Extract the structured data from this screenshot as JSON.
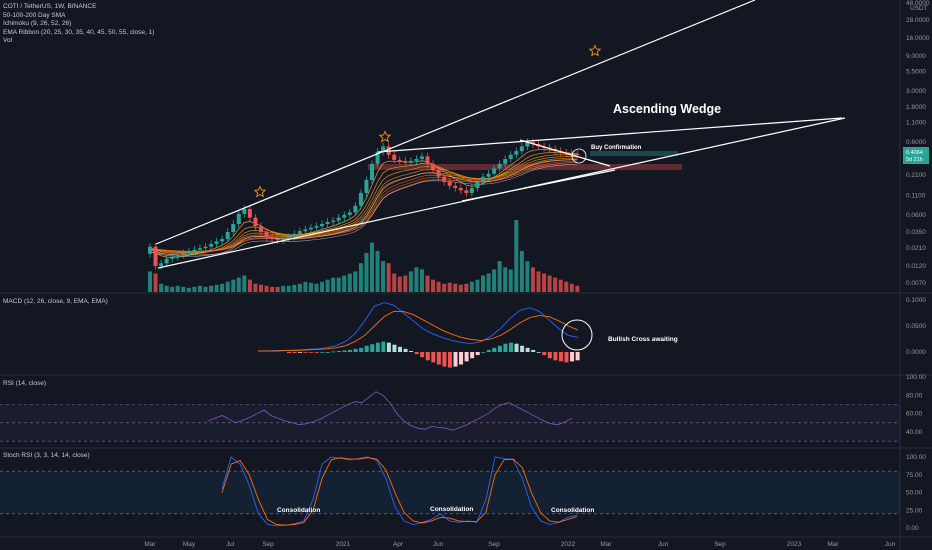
{
  "legend": {
    "symbol": "COTI / TetherUS, 1W, BINANCE",
    "indicators": [
      "50-100-200 Day SMA",
      "Ichimoku (9, 26, 52, 26)",
      "EMA Ribbon (20, 25, 30, 35, 40, 45, 50, 55, close, 1)",
      "Vol"
    ]
  },
  "panes": {
    "macd_label": "MACD (12, 26, close, 9, EMA, EMA)",
    "rsi_label": "RSI (14, close)",
    "stoch_label": "Stoch RSI (3, 3, 14, 14, close)"
  },
  "colors": {
    "background": "#131722",
    "bull": "#26a69a",
    "bear": "#ef5350",
    "macd_line": "#2962ff",
    "signal_line": "#ff6d00",
    "rsi_line": "#7e57c2",
    "trendline": "#ffffff",
    "star": "#ff9800"
  },
  "annotations": {
    "title": "Ascending Wedge",
    "buy": "Buy Confirmation",
    "macd_note": "Bullish Cross awaiting",
    "consolidation": [
      "Consolidation",
      "Consolidation",
      "Consolidation"
    ]
  },
  "price_badge": {
    "price": "0.4064",
    "countdown": "5d 21h"
  },
  "chart_data": [
    {
      "type": "candlestick",
      "pane": "price",
      "scale": "log",
      "currency": "USDT",
      "y_ticks": [
        "0.0070",
        "0.0120",
        "0.0210",
        "0.0350",
        "0.0600",
        "0.1100",
        "0.2100",
        "0.3600",
        "0.6000",
        "1.1000",
        "1.8000",
        "3.0000",
        "5.5000",
        "9.0000",
        "16.0000",
        "28.0000",
        "48.0000"
      ],
      "x_ticks": [
        "Mar",
        "May",
        "Jul",
        "Sep",
        "2021",
        "Apr",
        "Jun",
        "Sep",
        "2022",
        "Mar",
        "Jun",
        "Sep",
        "2023",
        "Mar",
        "Jun"
      ],
      "closes": [
        0.022,
        0.012,
        0.013,
        0.015,
        0.016,
        0.017,
        0.018,
        0.019,
        0.02,
        0.021,
        0.022,
        0.024,
        0.026,
        0.028,
        0.035,
        0.045,
        0.062,
        0.072,
        0.055,
        0.042,
        0.035,
        0.03,
        0.028,
        0.027,
        0.029,
        0.03,
        0.033,
        0.036,
        0.038,
        0.04,
        0.042,
        0.045,
        0.048,
        0.05,
        0.055,
        0.06,
        0.065,
        0.08,
        0.12,
        0.18,
        0.3,
        0.44,
        0.52,
        0.4,
        0.34,
        0.33,
        0.32,
        0.33,
        0.35,
        0.38,
        0.3,
        0.25,
        0.2,
        0.17,
        0.15,
        0.14,
        0.13,
        0.12,
        0.14,
        0.17,
        0.2,
        0.22,
        0.26,
        0.3,
        0.35,
        0.4,
        0.45,
        0.52,
        0.6,
        0.56,
        0.52,
        0.5,
        0.48,
        0.45,
        0.43,
        0.42,
        0.41,
        0.406
      ],
      "volume": [
        20,
        18,
        8,
        6,
        5,
        6,
        5,
        4,
        5,
        6,
        5,
        6,
        7,
        8,
        10,
        12,
        14,
        16,
        12,
        8,
        7,
        6,
        5,
        5,
        6,
        6,
        7,
        8,
        10,
        9,
        8,
        10,
        12,
        14,
        14,
        16,
        18,
        20,
        28,
        38,
        48,
        40,
        30,
        28,
        18,
        15,
        16,
        20,
        24,
        22,
        16,
        12,
        10,
        8,
        9,
        8,
        7,
        8,
        10,
        12,
        16,
        18,
        22,
        30,
        24,
        22,
        70,
        40,
        30,
        24,
        20,
        18,
        16,
        14,
        12,
        10,
        8,
        6
      ],
      "lines": [
        "EMA ribbon",
        "50-100-200 Day SMA",
        "Ichimoku cloud"
      ]
    },
    {
      "type": "bar+line",
      "pane": "macd",
      "y_ticks": [
        "0.1000",
        "0.0500",
        "0.0000"
      ],
      "histogram": [
        -0.002,
        -0.002,
        -0.001,
        -0.001,
        -0.001,
        -0.001,
        0,
        0,
        0.001,
        0.002,
        0.003,
        0.004,
        0.006,
        0.008,
        0.012,
        0.015,
        0.018,
        0.02,
        0.018,
        0.014,
        0.01,
        0.006,
        0.002,
        -0.004,
        -0.01,
        -0.016,
        -0.02,
        -0.024,
        -0.028,
        -0.03,
        -0.028,
        -0.024,
        -0.018,
        -0.012,
        -0.006,
        0,
        0.004,
        0.008,
        0.012,
        0.016,
        0.018,
        0.016,
        0.012,
        0.008,
        0.004,
        0,
        -0.006,
        -0.012,
        -0.016,
        -0.018,
        -0.02,
        -0.018,
        -0.016
      ],
      "series": [
        {
          "name": "MACD",
          "values": [
            0.002,
            0.002,
            0.003,
            0.003,
            0.004,
            0.005,
            0.006,
            0.008,
            0.012,
            0.02,
            0.035,
            0.06,
            0.088,
            0.095,
            0.09,
            0.075,
            0.06,
            0.045,
            0.035,
            0.028,
            0.022,
            0.018,
            0.016,
            0.02,
            0.03,
            0.045,
            0.065,
            0.08,
            0.085,
            0.078,
            0.062,
            0.045,
            0.032,
            0.028
          ]
        },
        {
          "name": "Signal",
          "values": [
            0.002,
            0.002,
            0.002,
            0.003,
            0.003,
            0.004,
            0.005,
            0.006,
            0.008,
            0.012,
            0.02,
            0.032,
            0.05,
            0.068,
            0.078,
            0.078,
            0.072,
            0.062,
            0.052,
            0.042,
            0.034,
            0.028,
            0.024,
            0.022,
            0.025,
            0.032,
            0.043,
            0.056,
            0.066,
            0.07,
            0.068,
            0.06,
            0.05,
            0.042
          ]
        }
      ]
    },
    {
      "type": "line",
      "pane": "rsi",
      "y_ticks": [
        "100.00",
        "80.00",
        "60.00",
        "40.00"
      ],
      "bands": [
        70,
        50,
        30
      ],
      "values": [
        52,
        55,
        58,
        54,
        50,
        53,
        56,
        60,
        64,
        58,
        55,
        52,
        50,
        48,
        49,
        51,
        54,
        58,
        62,
        66,
        70,
        73,
        72,
        78,
        84,
        80,
        72,
        60,
        52,
        47,
        44,
        43,
        46,
        45,
        44,
        42,
        45,
        48,
        52,
        56,
        60,
        66,
        70,
        72,
        68,
        64,
        60,
        56,
        52,
        49,
        48,
        51,
        55
      ]
    },
    {
      "type": "line",
      "pane": "stoch_rsi",
      "y_ticks": [
        "100.00",
        "75.00",
        "50.00",
        "25.00",
        "0.00"
      ],
      "bands": [
        80,
        20
      ],
      "series": [
        {
          "name": "K",
          "values": [
            55,
            100,
            90,
            60,
            20,
            5,
            3,
            4,
            6,
            10,
            40,
            90,
            100,
            98,
            96,
            98,
            100,
            95,
            70,
            30,
            10,
            5,
            8,
            12,
            20,
            10,
            8,
            10,
            8,
            40,
            100,
            98,
            96,
            70,
            30,
            10,
            5,
            8,
            15,
            18
          ]
        },
        {
          "name": "D",
          "values": [
            50,
            90,
            95,
            75,
            40,
            12,
            5,
            4,
            5,
            8,
            25,
            70,
            96,
            99,
            97,
            97,
            99,
            97,
            82,
            50,
            22,
            10,
            7,
            10,
            15,
            14,
            10,
            9,
            9,
            22,
            75,
            96,
            97,
            85,
            50,
            22,
            10,
            8,
            12,
            16
          ]
        }
      ]
    }
  ]
}
